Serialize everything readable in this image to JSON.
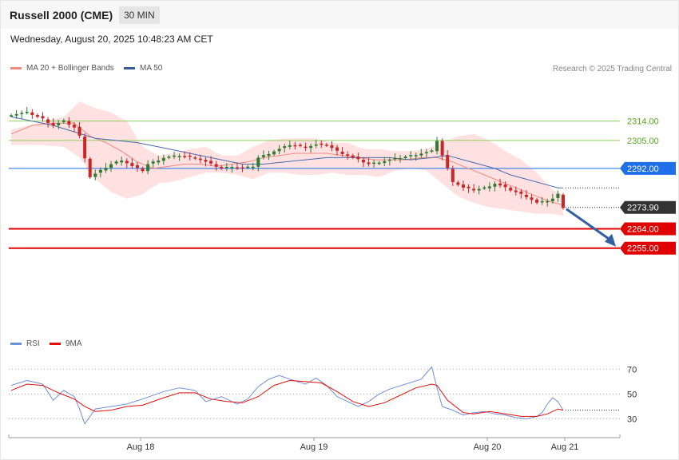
{
  "header": {
    "title": "Russell 2000 (CME)",
    "timeframe": "30 MIN",
    "datetime": "Wednesday, August 20, 2025 10:48:23 AM CET"
  },
  "legend": {
    "ma20": "MA 20 + Bollinger Bands",
    "ma50": "MA 50",
    "rsi": "RSI",
    "rsi_ma": "9MA",
    "credit": "Research © 2025 Trading Central"
  },
  "colors": {
    "bull": "#2e7d32",
    "bear": "#c62828",
    "bands": "#ffe1e1",
    "ma20": "#f08a80",
    "ma50": "#4a6aa8",
    "support": "#e00000",
    "pivot": "#1e6fe8",
    "resistance": "#8fcf5a",
    "resistance_text": "#5aa61e",
    "rsi": "#6f8fd8",
    "rsi_ma": "#e01010",
    "arrow": "#3560a0"
  },
  "chart_data": [
    {
      "type": "candlestick",
      "title": "Russell 2000 (CME)",
      "timeframe": "30 MIN",
      "ylim": [
        2246,
        2322
      ],
      "x_ticks": [
        "Aug 18",
        "Aug 19",
        "Aug 20",
        "Aug 21"
      ],
      "close_path": [
        [
          0,
          2317
        ],
        [
          3,
          2318
        ],
        [
          6,
          2315
        ],
        [
          8,
          2312
        ],
        [
          10,
          2314
        ],
        [
          12,
          2311
        ],
        [
          13,
          2307
        ],
        [
          14,
          2297
        ],
        [
          15,
          2288
        ],
        [
          17,
          2291
        ],
        [
          19,
          2294
        ],
        [
          21,
          2296
        ],
        [
          23,
          2293
        ],
        [
          25,
          2291
        ],
        [
          26,
          2294
        ],
        [
          29,
          2297
        ],
        [
          32,
          2298
        ],
        [
          35,
          2297
        ],
        [
          38,
          2294
        ],
        [
          40,
          2292
        ],
        [
          42,
          2293
        ],
        [
          44,
          2292
        ],
        [
          46,
          2293
        ],
        [
          47,
          2297
        ],
        [
          49,
          2299
        ],
        [
          51,
          2301
        ],
        [
          53,
          2303
        ],
        [
          56,
          2302
        ],
        [
          58,
          2303
        ],
        [
          60,
          2303
        ],
        [
          62,
          2300
        ],
        [
          64,
          2298
        ],
        [
          66,
          2296
        ],
        [
          68,
          2294
        ],
        [
          70,
          2295
        ],
        [
          72,
          2296
        ],
        [
          74,
          2297
        ],
        [
          76,
          2298
        ],
        [
          78,
          2299
        ],
        [
          80,
          2300
        ],
        [
          81,
          2305
        ],
        [
          82,
          2298
        ],
        [
          83,
          2292
        ],
        [
          84,
          2286
        ],
        [
          86,
          2283
        ],
        [
          88,
          2282
        ],
        [
          90,
          2283
        ],
        [
          92,
          2285
        ],
        [
          94,
          2283
        ],
        [
          96,
          2281
        ],
        [
          98,
          2279
        ],
        [
          100,
          2276
        ],
        [
          102,
          2277
        ],
        [
          103,
          2278
        ],
        [
          104,
          2280
        ],
        [
          105,
          2274
        ]
      ],
      "last_price": 2273.9,
      "levels": {
        "resistance": [
          2314.0,
          2305.0
        ],
        "pivot": 2292.0,
        "support": [
          2264.0,
          2255.0
        ]
      },
      "projection": {
        "from": 2273.9,
        "to": 2255.0
      }
    },
    {
      "type": "line",
      "series": [
        {
          "name": "RSI"
        },
        {
          "name": "9MA"
        }
      ],
      "ylim": [
        20,
        78
      ],
      "y_ticks": [
        70,
        50,
        30
      ],
      "rsi_path": [
        [
          0,
          57
        ],
        [
          3,
          61
        ],
        [
          6,
          58
        ],
        [
          8,
          45
        ],
        [
          10,
          53
        ],
        [
          12,
          48
        ],
        [
          13,
          38
        ],
        [
          14,
          26
        ],
        [
          16,
          38
        ],
        [
          19,
          40
        ],
        [
          22,
          42
        ],
        [
          25,
          46
        ],
        [
          29,
          52
        ],
        [
          32,
          55
        ],
        [
          35,
          53
        ],
        [
          37,
          44
        ],
        [
          40,
          48
        ],
        [
          43,
          42
        ],
        [
          45,
          46
        ],
        [
          47,
          56
        ],
        [
          49,
          62
        ],
        [
          51,
          65
        ],
        [
          53,
          62
        ],
        [
          56,
          58
        ],
        [
          58,
          63
        ],
        [
          60,
          57
        ],
        [
          62,
          48
        ],
        [
          64,
          44
        ],
        [
          66,
          40
        ],
        [
          68,
          44
        ],
        [
          70,
          50
        ],
        [
          72,
          54
        ],
        [
          75,
          58
        ],
        [
          78,
          62
        ],
        [
          80,
          72
        ],
        [
          81,
          55
        ],
        [
          82,
          40
        ],
        [
          84,
          37
        ],
        [
          86,
          33
        ],
        [
          88,
          35
        ],
        [
          90,
          36
        ],
        [
          92,
          34
        ],
        [
          94,
          33
        ],
        [
          96,
          31
        ],
        [
          98,
          30
        ],
        [
          100,
          32
        ],
        [
          101,
          35
        ],
        [
          102,
          42
        ],
        [
          103,
          47
        ],
        [
          104,
          44
        ],
        [
          105,
          37
        ]
      ],
      "ma9_path": [
        [
          0,
          53
        ],
        [
          3,
          58
        ],
        [
          6,
          57
        ],
        [
          9,
          51
        ],
        [
          12,
          46
        ],
        [
          14,
          40
        ],
        [
          16,
          36
        ],
        [
          19,
          37
        ],
        [
          22,
          40
        ],
        [
          25,
          41
        ],
        [
          29,
          47
        ],
        [
          32,
          51
        ],
        [
          35,
          51
        ],
        [
          38,
          46
        ],
        [
          41,
          44
        ],
        [
          44,
          43
        ],
        [
          47,
          48
        ],
        [
          50,
          57
        ],
        [
          53,
          61
        ],
        [
          56,
          60
        ],
        [
          59,
          59
        ],
        [
          62,
          52
        ],
        [
          65,
          44
        ],
        [
          68,
          40
        ],
        [
          71,
          43
        ],
        [
          74,
          49
        ],
        [
          77,
          55
        ],
        [
          80,
          58
        ],
        [
          81,
          57
        ],
        [
          83,
          45
        ],
        [
          86,
          35
        ],
        [
          88,
          34
        ],
        [
          91,
          36
        ],
        [
          94,
          34
        ],
        [
          97,
          32
        ],
        [
          100,
          32
        ],
        [
          102,
          34
        ],
        [
          104,
          38
        ],
        [
          105,
          37
        ]
      ]
    }
  ],
  "bands_upper": [
    [
      0,
      2310
    ],
    [
      5,
      2313
    ],
    [
      10,
      2316
    ],
    [
      13,
      2323
    ],
    [
      16,
      2320
    ],
    [
      19,
      2318
    ],
    [
      22,
      2314
    ],
    [
      25,
      2302
    ],
    [
      28,
      2298
    ],
    [
      31,
      2299
    ],
    [
      34,
      2301
    ],
    [
      37,
      2302
    ],
    [
      40,
      2298
    ],
    [
      43,
      2298
    ],
    [
      46,
      2302
    ],
    [
      49,
      2305
    ],
    [
      52,
      2306
    ],
    [
      55,
      2306
    ],
    [
      58,
      2306
    ],
    [
      61,
      2304
    ],
    [
      64,
      2304
    ],
    [
      67,
      2301
    ],
    [
      70,
      2301
    ],
    [
      73,
      2300
    ],
    [
      76,
      2300
    ],
    [
      79,
      2301
    ],
    [
      82,
      2304
    ],
    [
      85,
      2307
    ],
    [
      88,
      2308
    ],
    [
      91,
      2305
    ],
    [
      94,
      2300
    ],
    [
      97,
      2296
    ],
    [
      100,
      2290
    ],
    [
      103,
      2282
    ],
    [
      105,
      2280
    ]
  ],
  "bands_lower": [
    [
      105,
      2270
    ],
    [
      103,
      2271
    ],
    [
      100,
      2271
    ],
    [
      97,
      2272
    ],
    [
      94,
      2273
    ],
    [
      91,
      2274
    ],
    [
      88,
      2276
    ],
    [
      85,
      2279
    ],
    [
      82,
      2285
    ],
    [
      79,
      2291
    ],
    [
      76,
      2292
    ],
    [
      73,
      2291
    ],
    [
      70,
      2288
    ],
    [
      67,
      2289
    ],
    [
      64,
      2289
    ],
    [
      61,
      2290
    ],
    [
      58,
      2289
    ],
    [
      55,
      2289
    ],
    [
      52,
      2290
    ],
    [
      49,
      2290
    ],
    [
      46,
      2287
    ],
    [
      43,
      2289
    ],
    [
      40,
      2290
    ],
    [
      37,
      2290
    ],
    [
      34,
      2288
    ],
    [
      31,
      2286
    ],
    [
      28,
      2285
    ],
    [
      25,
      2280
    ],
    [
      22,
      2278
    ],
    [
      19,
      2281
    ],
    [
      16,
      2287
    ],
    [
      13,
      2297
    ],
    [
      10,
      2302
    ],
    [
      5,
      2303
    ],
    [
      0,
      2303
    ]
  ],
  "ma20_path": [
    [
      0,
      2308
    ],
    [
      4,
      2312
    ],
    [
      8,
      2313
    ],
    [
      12,
      2313
    ],
    [
      15,
      2307
    ],
    [
      18,
      2304
    ],
    [
      21,
      2300
    ],
    [
      24,
      2295
    ],
    [
      27,
      2292
    ],
    [
      30,
      2293
    ],
    [
      33,
      2294
    ],
    [
      36,
      2294
    ],
    [
      39,
      2293
    ],
    [
      42,
      2294
    ],
    [
      45,
      2295
    ],
    [
      48,
      2297
    ],
    [
      51,
      2298
    ],
    [
      54,
      2299
    ],
    [
      57,
      2299
    ],
    [
      60,
      2299
    ],
    [
      63,
      2298
    ],
    [
      66,
      2297
    ],
    [
      69,
      2296
    ],
    [
      72,
      2296
    ],
    [
      75,
      2296
    ],
    [
      78,
      2297
    ],
    [
      81,
      2297
    ],
    [
      84,
      2295
    ],
    [
      87,
      2292
    ],
    [
      90,
      2289
    ],
    [
      93,
      2286
    ],
    [
      96,
      2283
    ],
    [
      99,
      2280
    ],
    [
      102,
      2277
    ],
    [
      105,
      2275
    ]
  ],
  "ma50_path": [
    [
      0,
      2316
    ],
    [
      4,
      2314
    ],
    [
      8,
      2312
    ],
    [
      12,
      2309
    ],
    [
      16,
      2306
    ],
    [
      20,
      2305
    ],
    [
      24,
      2304
    ],
    [
      28,
      2302
    ],
    [
      32,
      2300
    ],
    [
      36,
      2298
    ],
    [
      40,
      2296
    ],
    [
      44,
      2294
    ],
    [
      48,
      2294
    ],
    [
      52,
      2295
    ],
    [
      56,
      2296
    ],
    [
      60,
      2297
    ],
    [
      64,
      2297
    ],
    [
      68,
      2297
    ],
    [
      72,
      2297
    ],
    [
      76,
      2296
    ],
    [
      80,
      2297
    ],
    [
      83,
      2298
    ],
    [
      86,
      2296
    ],
    [
      89,
      2294
    ],
    [
      92,
      2292
    ],
    [
      95,
      2289
    ],
    [
      98,
      2287
    ],
    [
      101,
      2285
    ],
    [
      104,
      2283
    ],
    [
      105,
      2283
    ]
  ],
  "last_price_label": "2273.90",
  "level_labels": [
    "2314.00",
    "2305.00",
    "2292.00",
    "2264.00",
    "2255.00"
  ],
  "rsi_tick_labels": [
    "70",
    "50",
    "30"
  ]
}
